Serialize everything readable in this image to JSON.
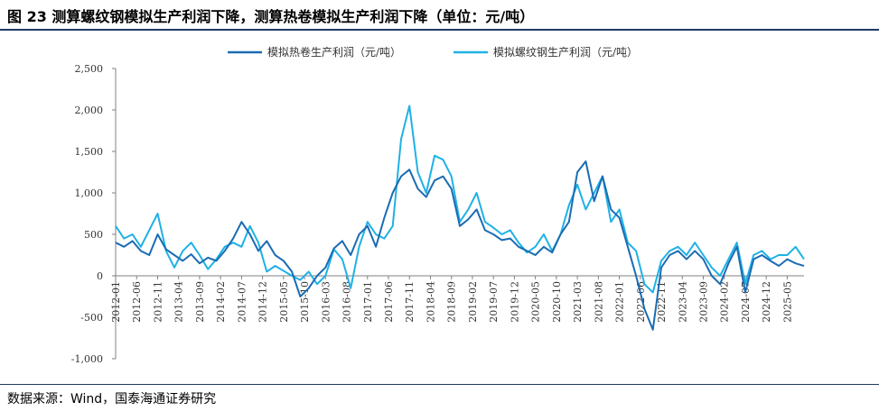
{
  "title": "图 23 测算螺纹钢模拟生产利润下降，测算热卷模拟生产利润下降（单位：元/吨）",
  "source": "数据来源：Wind，国泰海通证券研究",
  "chart_data": {
    "type": "line",
    "ylim": [
      -1000,
      2500
    ],
    "yticks": [
      -1000,
      -500,
      0,
      500,
      1000,
      1500,
      2000,
      2500
    ],
    "ytick_labels": [
      "-1,000",
      "-500",
      "0",
      "500",
      "1,000",
      "1,500",
      "2,000",
      "2,500"
    ],
    "xlim": [
      "2012-01",
      "2025-09"
    ],
    "xtick_labels": [
      "2012-01",
      "2012-06",
      "2012-11",
      "2013-04",
      "2013-09",
      "2014-02",
      "2014-07",
      "2014-12",
      "2015-05",
      "2015-10",
      "2016-03",
      "2016-08",
      "2017-01",
      "2017-06",
      "2017-11",
      "2018-04",
      "2018-09",
      "2019-02",
      "2019-07",
      "2019-12",
      "2020-05",
      "2020-10",
      "2021-03",
      "2021-08",
      "2022-01",
      "2022-06",
      "2022-11",
      "2023-04",
      "2023-09",
      "2024-02",
      "2024-07",
      "2024-12",
      "2025-05"
    ],
    "legend_position": "top",
    "grid": false,
    "series": [
      {
        "name": "模拟热卷生产利润（元/吨）",
        "color": "#1a6cb3",
        "x": [
          "2012-01",
          "2012-03",
          "2012-05",
          "2012-07",
          "2012-09",
          "2012-11",
          "2013-01",
          "2013-03",
          "2013-05",
          "2013-07",
          "2013-09",
          "2013-11",
          "2014-01",
          "2014-03",
          "2014-05",
          "2014-07",
          "2014-09",
          "2014-11",
          "2015-01",
          "2015-03",
          "2015-05",
          "2015-07",
          "2015-09",
          "2015-11",
          "2016-01",
          "2016-03",
          "2016-05",
          "2016-07",
          "2016-09",
          "2016-11",
          "2017-01",
          "2017-03",
          "2017-05",
          "2017-07",
          "2017-09",
          "2017-11",
          "2018-01",
          "2018-03",
          "2018-05",
          "2018-07",
          "2018-09",
          "2018-11",
          "2019-01",
          "2019-03",
          "2019-05",
          "2019-07",
          "2019-09",
          "2019-11",
          "2020-01",
          "2020-03",
          "2020-05",
          "2020-07",
          "2020-09",
          "2020-11",
          "2021-01",
          "2021-03",
          "2021-05",
          "2021-07",
          "2021-09",
          "2021-11",
          "2022-01",
          "2022-03",
          "2022-05",
          "2022-07",
          "2022-09",
          "2022-11",
          "2023-01",
          "2023-03",
          "2023-05",
          "2023-07",
          "2023-09",
          "2023-11",
          "2024-01",
          "2024-03",
          "2024-05",
          "2024-07",
          "2024-09",
          "2024-11",
          "2025-01",
          "2025-03",
          "2025-05",
          "2025-07",
          "2025-09"
        ],
        "values": [
          400,
          350,
          420,
          300,
          250,
          500,
          320,
          250,
          180,
          260,
          150,
          220,
          180,
          300,
          450,
          650,
          500,
          300,
          420,
          250,
          180,
          50,
          -250,
          -150,
          0,
          100,
          330,
          420,
          250,
          500,
          600,
          350,
          700,
          1000,
          1200,
          1280,
          1050,
          950,
          1150,
          1200,
          1050,
          600,
          680,
          800,
          550,
          500,
          430,
          450,
          350,
          300,
          250,
          350,
          280,
          500,
          650,
          1250,
          1380,
          900,
          1200,
          800,
          700,
          350,
          0,
          -400,
          -650,
          100,
          250,
          300,
          200,
          300,
          200,
          0,
          -100,
          150,
          350,
          -200,
          200,
          250,
          180,
          120,
          200,
          150,
          120
        ]
      },
      {
        "name": "模拟螺纹钢生产利润（元/吨）",
        "color": "#1fb1e6",
        "x": [
          "2012-01",
          "2012-03",
          "2012-05",
          "2012-07",
          "2012-09",
          "2012-11",
          "2013-01",
          "2013-03",
          "2013-05",
          "2013-07",
          "2013-09",
          "2013-11",
          "2014-01",
          "2014-03",
          "2014-05",
          "2014-07",
          "2014-09",
          "2014-11",
          "2015-01",
          "2015-03",
          "2015-05",
          "2015-07",
          "2015-09",
          "2015-11",
          "2016-01",
          "2016-03",
          "2016-05",
          "2016-07",
          "2016-09",
          "2016-11",
          "2017-01",
          "2017-03",
          "2017-05",
          "2017-07",
          "2017-09",
          "2017-11",
          "2018-01",
          "2018-03",
          "2018-05",
          "2018-07",
          "2018-09",
          "2018-11",
          "2019-01",
          "2019-03",
          "2019-05",
          "2019-07",
          "2019-09",
          "2019-11",
          "2020-01",
          "2020-03",
          "2020-05",
          "2020-07",
          "2020-09",
          "2020-11",
          "2021-01",
          "2021-03",
          "2021-05",
          "2021-07",
          "2021-09",
          "2021-11",
          "2022-01",
          "2022-03",
          "2022-05",
          "2022-07",
          "2022-09",
          "2022-11",
          "2023-01",
          "2023-03",
          "2023-05",
          "2023-07",
          "2023-09",
          "2023-11",
          "2024-01",
          "2024-03",
          "2024-05",
          "2024-07",
          "2024-09",
          "2024-11",
          "2025-01",
          "2025-03",
          "2025-05",
          "2025-07",
          "2025-09"
        ],
        "values": [
          600,
          450,
          500,
          350,
          550,
          750,
          300,
          100,
          300,
          400,
          250,
          80,
          200,
          350,
          400,
          350,
          600,
          400,
          50,
          120,
          60,
          0,
          -50,
          50,
          -100,
          0,
          320,
          200,
          -150,
          350,
          650,
          500,
          450,
          600,
          1650,
          2050,
          1250,
          1000,
          1450,
          1400,
          1200,
          650,
          800,
          1000,
          650,
          580,
          500,
          550,
          400,
          280,
          350,
          500,
          300,
          500,
          850,
          1100,
          800,
          1000,
          1200,
          650,
          800,
          400,
          300,
          -100,
          -200,
          180,
          300,
          350,
          250,
          400,
          250,
          100,
          0,
          200,
          400,
          -100,
          250,
          300,
          200,
          250,
          250,
          350,
          200
        ]
      }
    ]
  }
}
